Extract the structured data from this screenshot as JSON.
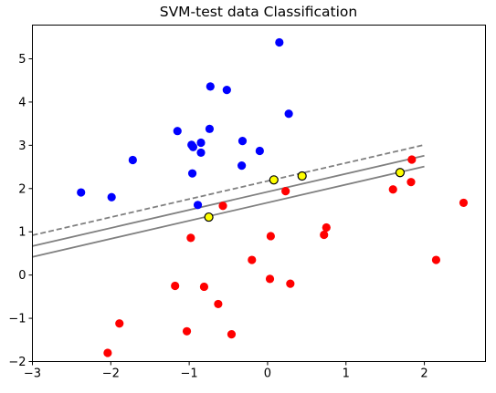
{
  "chart_data": {
    "type": "scatter",
    "title": "SVM-test data Classification",
    "xlabel": "",
    "ylabel": "",
    "xlim": [
      -3,
      2.78
    ],
    "ylim": [
      -2,
      5.78
    ],
    "xticks": [
      -3,
      -2,
      -1,
      0,
      1,
      2
    ],
    "yticks": [
      -2,
      -1,
      0,
      1,
      2,
      3,
      4,
      5
    ],
    "xtick_labels": [
      "−3",
      "−2",
      "−1",
      "0",
      "1",
      "2"
    ],
    "ytick_labels": [
      "−2",
      "−1",
      "0",
      "1",
      "2",
      "3",
      "4",
      "5"
    ],
    "grid": false,
    "series": [
      {
        "color": "#0000ff",
        "points": [
          [
            0.15,
            5.38
          ],
          [
            -0.73,
            4.36
          ],
          [
            -0.52,
            4.28
          ],
          [
            0.27,
            3.73
          ],
          [
            -0.74,
            3.38
          ],
          [
            -1.15,
            3.33
          ],
          [
            -0.32,
            3.1
          ],
          [
            -0.85,
            3.06
          ],
          [
            -0.97,
            3.01
          ],
          [
            -0.95,
            2.96
          ],
          [
            -0.85,
            2.83
          ],
          [
            -0.1,
            2.87
          ],
          [
            -1.72,
            2.66
          ],
          [
            -0.33,
            2.53
          ],
          [
            -0.96,
            2.35
          ],
          [
            -2.38,
            1.91
          ],
          [
            -1.99,
            1.8
          ],
          [
            -0.89,
            1.62
          ]
        ]
      },
      {
        "color": "#ff0000",
        "points": [
          [
            1.84,
            2.67
          ],
          [
            1.83,
            2.15
          ],
          [
            1.6,
            1.98
          ],
          [
            0.23,
            1.94
          ],
          [
            -0.57,
            1.6
          ],
          [
            2.5,
            1.67
          ],
          [
            0.75,
            1.1
          ],
          [
            0.72,
            0.93
          ],
          [
            -0.98,
            0.86
          ],
          [
            0.04,
            0.9
          ],
          [
            -0.2,
            0.35
          ],
          [
            2.15,
            0.35
          ],
          [
            0.03,
            -0.09
          ],
          [
            0.29,
            -0.2
          ],
          [
            -1.18,
            -0.25
          ],
          [
            -0.81,
            -0.27
          ],
          [
            -0.63,
            -0.67
          ],
          [
            -1.89,
            -1.12
          ],
          [
            -1.03,
            -1.3
          ],
          [
            -0.46,
            -1.37
          ],
          [
            -2.04,
            -1.8
          ]
        ]
      }
    ],
    "support_vectors": [
      [
        0.08,
        2.2
      ],
      [
        0.44,
        2.29
      ],
      [
        1.69,
        2.37
      ],
      [
        -0.75,
        1.34
      ]
    ],
    "lines": [
      {
        "style": "dashed",
        "color": "#808080",
        "x": [
          -3,
          2
        ],
        "y": [
          0.92,
          3.01
        ]
      },
      {
        "style": "solid",
        "color": "#808080",
        "x": [
          -3,
          2
        ],
        "y": [
          0.67,
          2.76
        ]
      },
      {
        "style": "solid",
        "color": "#808080",
        "x": [
          -3,
          2
        ],
        "y": [
          0.42,
          2.51
        ]
      }
    ],
    "support_vector_style": {
      "fill": "#ffff00",
      "edge": "#000000"
    }
  }
}
